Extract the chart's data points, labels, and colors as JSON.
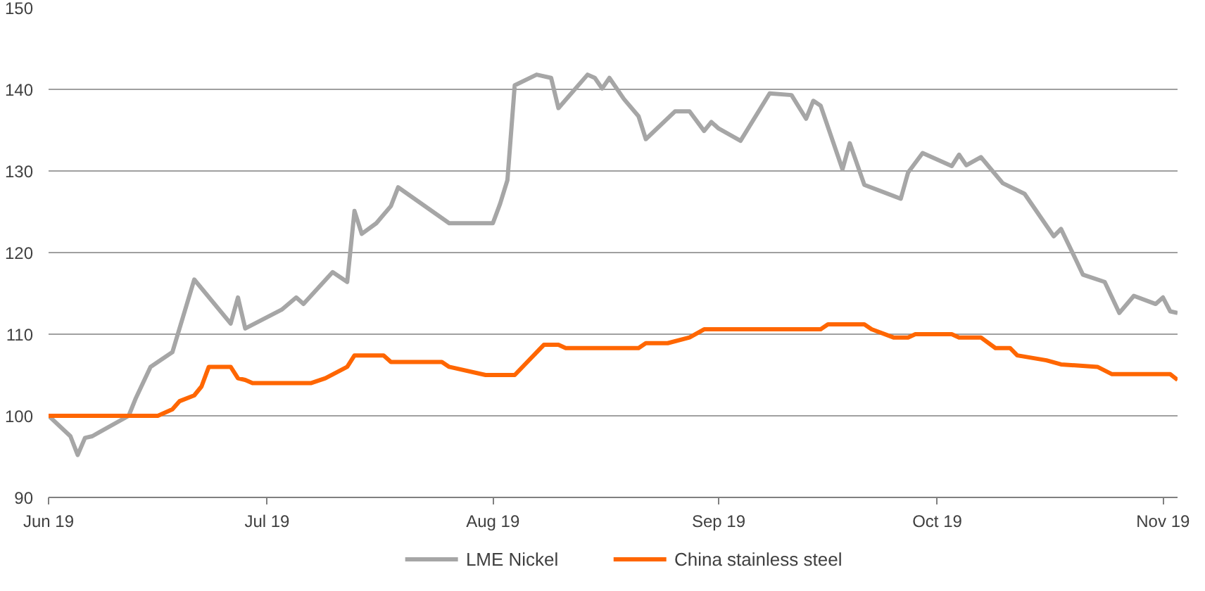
{
  "chart_data": {
    "type": "line",
    "x": [
      "2019-06-01",
      "2019-06-04",
      "2019-06-05",
      "2019-06-06",
      "2019-06-07",
      "2019-06-08",
      "2019-06-12",
      "2019-06-13",
      "2019-06-15",
      "2019-06-18",
      "2019-06-21",
      "2019-06-26",
      "2019-06-27",
      "2019-06-28",
      "2019-07-03",
      "2019-07-05",
      "2019-07-06",
      "2019-07-10",
      "2019-07-12",
      "2019-07-13",
      "2019-07-14",
      "2019-07-16",
      "2019-07-18",
      "2019-07-19",
      "2019-07-26",
      "2019-08-01",
      "2019-08-02",
      "2019-08-03",
      "2019-08-04",
      "2019-08-07",
      "2019-08-09",
      "2019-08-10",
      "2019-08-14",
      "2019-08-15",
      "2019-08-16",
      "2019-08-17",
      "2019-08-19",
      "2019-08-21",
      "2019-08-22",
      "2019-08-26",
      "2019-08-28",
      "2019-08-30",
      "2019-08-31",
      "2019-09-01",
      "2019-09-04",
      "2019-09-08",
      "2019-09-11",
      "2019-09-13",
      "2019-09-14",
      "2019-09-15",
      "2019-09-18",
      "2019-09-19",
      "2019-09-21",
      "2019-09-26",
      "2019-09-27",
      "2019-09-29",
      "2019-10-03",
      "2019-10-04",
      "2019-10-05",
      "2019-10-07",
      "2019-10-10",
      "2019-10-13",
      "2019-10-17",
      "2019-10-18",
      "2019-10-20",
      "2019-10-21",
      "2019-10-24",
      "2019-10-26",
      "2019-10-28",
      "2019-10-31",
      "2019-11-01",
      "2019-11-02",
      "2019-11-03"
    ],
    "series": [
      {
        "name": "LME Nickel",
        "color": "#a6a6a6",
        "values": [
          100,
          97.5,
          95.2,
          97.3,
          97.5,
          98,
          100,
          102.2,
          106,
          107.8,
          116.7,
          111.3,
          114.5,
          110.7,
          113,
          114.5,
          113.7,
          117.6,
          116.4,
          125.1,
          122.3,
          123.6,
          125.7,
          128,
          123.6,
          123.6,
          126,
          128.9,
          140.5,
          141.8,
          141.4,
          137.7,
          141.8,
          141.4,
          140.1,
          141.4,
          138.8,
          136.7,
          133.9,
          137.3,
          137.3,
          134.9,
          136,
          135.2,
          133.7,
          139.5,
          139.3,
          136.4,
          138.6,
          138,
          130.2,
          133.4,
          128.3,
          126.6,
          129.8,
          132.2,
          130.6,
          132,
          130.7,
          131.7,
          128.5,
          127.2,
          122,
          122.9,
          119.2,
          117.3,
          116.4,
          112.6,
          114.7,
          113.7,
          114.5,
          112.8,
          112.6
        ]
      },
      {
        "name": "China stainless steel",
        "color": "#ff6600",
        "x": [
          "2019-06-01",
          "2019-06-16",
          "2019-06-18",
          "2019-06-19",
          "2019-06-21",
          "2019-06-22",
          "2019-06-23",
          "2019-06-26",
          "2019-06-27",
          "2019-06-28",
          "2019-06-29",
          "2019-07-07",
          "2019-07-09",
          "2019-07-12",
          "2019-07-13",
          "2019-07-17",
          "2019-07-18",
          "2019-07-25",
          "2019-07-26",
          "2019-07-31",
          "2019-08-04",
          "2019-08-08",
          "2019-08-10",
          "2019-08-11",
          "2019-08-21",
          "2019-08-22",
          "2019-08-25",
          "2019-08-28",
          "2019-08-30",
          "2019-09-15",
          "2019-09-16",
          "2019-09-21",
          "2019-09-22",
          "2019-09-25",
          "2019-09-27",
          "2019-09-28",
          "2019-10-03",
          "2019-10-04",
          "2019-10-07",
          "2019-10-09",
          "2019-10-11",
          "2019-10-12",
          "2019-10-16",
          "2019-10-18",
          "2019-10-23",
          "2019-10-25",
          "2019-11-02",
          "2019-11-03"
        ],
        "values": [
          100,
          100,
          100.8,
          101.8,
          102.5,
          103.6,
          106,
          106,
          104.6,
          104.4,
          104,
          104,
          104.6,
          106,
          107.4,
          107.4,
          106.6,
          106.6,
          106,
          105,
          105,
          108.7,
          108.7,
          108.3,
          108.3,
          108.9,
          108.9,
          109.6,
          110.6,
          110.6,
          111.2,
          111.2,
          110.6,
          109.6,
          109.6,
          110,
          110,
          109.6,
          109.6,
          108.3,
          108.3,
          107.4,
          106.8,
          106.3,
          106,
          105.1,
          105.1,
          104.4
        ]
      }
    ],
    "xlim": [
      "2019-06-01",
      "2019-11-03"
    ],
    "xticks": [
      {
        "value": "2019-06-01",
        "label": "Jun 19"
      },
      {
        "value": "2019-07-01",
        "label": "Jul 19"
      },
      {
        "value": "2019-08-01",
        "label": "Aug 19"
      },
      {
        "value": "2019-09-01",
        "label": "Sep 19"
      },
      {
        "value": "2019-10-01",
        "label": "Oct 19"
      },
      {
        "value": "2019-11-01",
        "label": "Nov 19"
      }
    ],
    "ylim": [
      90,
      150
    ],
    "yticks": [
      90,
      100,
      110,
      120,
      130,
      140,
      150
    ],
    "grid": "y",
    "legend": "bottom",
    "line_style": "solid"
  }
}
